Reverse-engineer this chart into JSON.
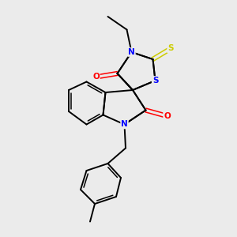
{
  "background_color": "#ebebeb",
  "bond_color": "#000000",
  "N_color": "#0000ff",
  "O_color": "#ff0000",
  "S_yellow_color": "#cccc00",
  "S_black_color": "#0000ff",
  "figsize": [
    3.0,
    3.0
  ],
  "dpi": 100,
  "xlim": [
    0,
    10
  ],
  "ylim": [
    0,
    10
  ]
}
